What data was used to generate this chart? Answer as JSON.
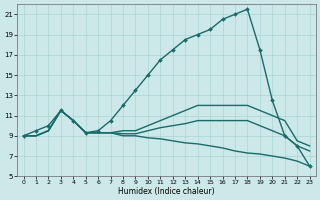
{
  "xlabel": "Humidex (Indice chaleur)",
  "ylabel": "",
  "bg_color": "#cce8e8",
  "grid_color": "#aad4d4",
  "line_color": "#1a6b6b",
  "xlim": [
    -0.5,
    23.5
  ],
  "ylim": [
    5,
    22
  ],
  "xticks": [
    0,
    1,
    2,
    3,
    4,
    5,
    6,
    7,
    8,
    9,
    10,
    11,
    12,
    13,
    14,
    15,
    16,
    17,
    18,
    19,
    20,
    21,
    22,
    23
  ],
  "yticks": [
    5,
    7,
    9,
    11,
    13,
    15,
    17,
    19,
    21
  ],
  "curves": [
    {
      "x": [
        0,
        1,
        2,
        3,
        4,
        5,
        6,
        7,
        8,
        9,
        10,
        11,
        12,
        13,
        14,
        15,
        16,
        17,
        18,
        19,
        20,
        21,
        22,
        23
      ],
      "y": [
        9,
        9.5,
        10,
        11.5,
        10.5,
        9.3,
        9.5,
        10.5,
        12,
        13.5,
        15,
        16.5,
        17.5,
        18.5,
        19,
        19.5,
        20.5,
        21,
        21.5,
        17.5,
        12.5,
        9,
        8,
        6
      ],
      "marker": "D",
      "markersize": 2,
      "linewidth": 1.0
    },
    {
      "x": [
        0,
        1,
        2,
        3,
        4,
        5,
        6,
        7,
        8,
        9,
        10,
        11,
        12,
        13,
        14,
        15,
        16,
        17,
        18,
        19,
        20,
        21,
        22,
        23
      ],
      "y": [
        9,
        9,
        9.5,
        11.5,
        10.5,
        9.3,
        9.3,
        9.3,
        9.5,
        9.5,
        10,
        10.5,
        11,
        11.5,
        12,
        12,
        12,
        12,
        12,
        11.5,
        11,
        10.5,
        8.5,
        8
      ],
      "marker": null,
      "markersize": 0,
      "linewidth": 1.0
    },
    {
      "x": [
        0,
        1,
        2,
        3,
        4,
        5,
        6,
        7,
        8,
        9,
        10,
        11,
        12,
        13,
        14,
        15,
        16,
        17,
        18,
        19,
        20,
        21,
        22,
        23
      ],
      "y": [
        9,
        9,
        9.5,
        11.5,
        10.5,
        9.3,
        9.3,
        9.3,
        9.2,
        9.2,
        9.5,
        9.8,
        10,
        10.2,
        10.5,
        10.5,
        10.5,
        10.5,
        10.5,
        10,
        9.5,
        9,
        8,
        7.5
      ],
      "marker": null,
      "markersize": 0,
      "linewidth": 1.0
    },
    {
      "x": [
        0,
        1,
        2,
        3,
        4,
        5,
        6,
        7,
        8,
        9,
        10,
        11,
        12,
        13,
        14,
        15,
        16,
        17,
        18,
        19,
        20,
        21,
        22,
        23
      ],
      "y": [
        9,
        9,
        9.5,
        11.5,
        10.5,
        9.3,
        9.3,
        9.3,
        9,
        9,
        8.8,
        8.7,
        8.5,
        8.3,
        8.2,
        8,
        7.8,
        7.5,
        7.3,
        7.2,
        7,
        6.8,
        6.5,
        6
      ],
      "marker": null,
      "markersize": 0,
      "linewidth": 1.0
    }
  ]
}
